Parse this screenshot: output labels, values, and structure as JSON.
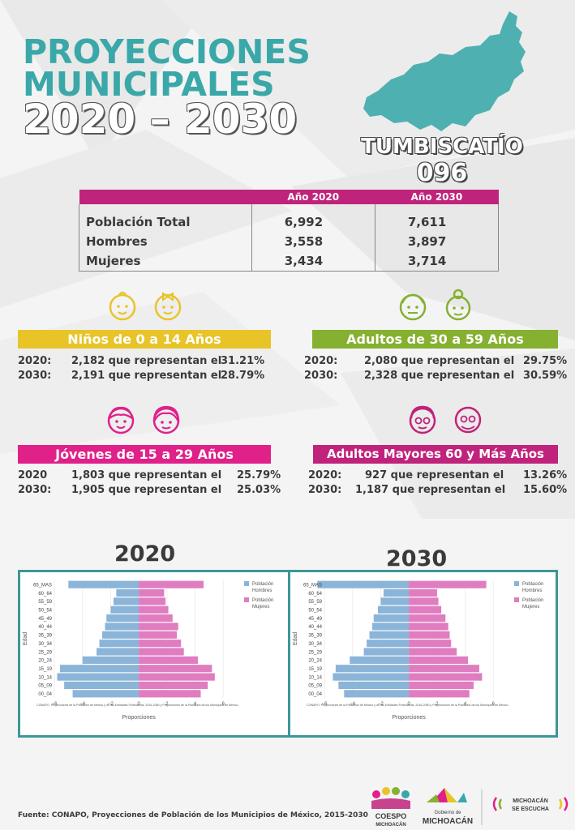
{
  "header": {
    "title_line1": "PROYECCIONES",
    "title_line2": "MUNICIPALES",
    "title_line3": "2020 – 2030",
    "municipality": "TUMBISCATÍO",
    "code": "096"
  },
  "colors": {
    "teal": "#3aa8a8",
    "magenta": "#c0237b",
    "yellow": "#e8c428",
    "green": "#86b030",
    "pink": "#e0218a",
    "chart_border": "#3d9797",
    "hombres": "#8ab4d8",
    "mujeres": "#e07cc0"
  },
  "summary_table": {
    "headers": [
      "",
      "Año 2020",
      "Año 2030"
    ],
    "rows": [
      {
        "label": "Población Total",
        "y2020": "6,992",
        "y2030": "7,611"
      },
      {
        "label": "Hombres",
        "y2020": "3,558",
        "y2030": "3,897"
      },
      {
        "label": "Mujeres",
        "y2020": "3,434",
        "y2030": "3,714"
      }
    ]
  },
  "groups": {
    "ninos": {
      "title": "Niños de 0 a 14 Años",
      "icons": [
        "baby-boy-icon",
        "baby-girl-icon"
      ],
      "rows": [
        {
          "year": "2020:",
          "text": "2,182 que representan el",
          "pct": "31.21%"
        },
        {
          "year": "2030:",
          "text": "2,191 que representan el",
          "pct": "28.79%"
        }
      ]
    },
    "adultos": {
      "title": "Adultos de 30 a 59 Años",
      "icons": [
        "adult-man-icon",
        "adult-woman-icon"
      ],
      "rows": [
        {
          "year": "2020:",
          "text": "2,080 que representan el",
          "pct": "29.75%"
        },
        {
          "year": "2030:",
          "text": "2,328 que representan el",
          "pct": "30.59%"
        }
      ]
    },
    "jovenes": {
      "title": "Jóvenes de 15 a 29 Años",
      "icons": [
        "young-man-icon",
        "young-woman-icon"
      ],
      "rows": [
        {
          "year": "2020",
          "text": "1,803 que representan el",
          "pct": "25.79%"
        },
        {
          "year": "2030:",
          "text": "1,905 que representan el",
          "pct": "25.03%"
        }
      ]
    },
    "mayores": {
      "title": "Adultos Mayores  60 y Más Años",
      "icons": [
        "elderly-woman-icon",
        "elderly-man-icon"
      ],
      "rows": [
        {
          "year": "2020:",
          "text": "927  que representan el",
          "pct": "13.26%"
        },
        {
          "year": "2030:",
          "text": "1,187 que representan el",
          "pct": "15.60%"
        }
      ]
    }
  },
  "pyramids": {
    "title_2020": "2020",
    "title_2030": "2030",
    "ylabel": "Edad",
    "xlabel": "Proporciones",
    "legend_hombres": "Población Hombres",
    "legend_mujeres": "Población Mujeres",
    "note": "CONAPO. Proyecciones de la Población de México y de las Entidades Federativas, 2016-2050 y Proyecciones de la Población de los Municipios de México."
  },
  "chart_data": [
    {
      "type": "bar",
      "title": "2020",
      "xlabel": "Proporciones",
      "ylabel": "Edad",
      "xlim": [
        -6,
        8
      ],
      "xticks": [
        -6,
        -4,
        -2,
        0,
        2,
        4,
        6
      ],
      "categories": [
        "65_MAS",
        "60_64",
        "55_59",
        "50_54",
        "45_49",
        "40_44",
        "35_39",
        "30_34",
        "25_29",
        "20_24",
        "15_19",
        "10_14",
        "05_09",
        "00_04"
      ],
      "series": [
        {
          "name": "Población Hombres",
          "values": [
            -5.0,
            -1.6,
            -1.8,
            -2.0,
            -2.3,
            -2.4,
            -2.6,
            -2.8,
            -3.0,
            -4.0,
            -5.6,
            -5.8,
            -5.3,
            -4.7
          ]
        },
        {
          "name": "Población Mujeres",
          "values": [
            4.6,
            1.8,
            1.9,
            2.1,
            2.4,
            2.8,
            2.7,
            3.0,
            3.2,
            4.2,
            5.2,
            5.4,
            4.9,
            4.4
          ]
        }
      ]
    },
    {
      "type": "bar",
      "title": "2030",
      "xlabel": "Proporciones",
      "ylabel": "Edad",
      "xlim": [
        -6,
        8
      ],
      "xticks": [
        -6,
        -4,
        -2,
        0,
        2,
        4,
        6
      ],
      "categories": [
        "65_MAS",
        "60_64",
        "55_59",
        "50_54",
        "45_49",
        "40_44",
        "35_39",
        "30_34",
        "25_29",
        "20_24",
        "15_19",
        "10_14",
        "05_09",
        "00_04"
      ],
      "series": [
        {
          "name": "Población Hombres",
          "values": [
            -6.5,
            -1.8,
            -2.0,
            -2.2,
            -2.5,
            -2.6,
            -2.8,
            -3.0,
            -3.2,
            -4.2,
            -5.2,
            -5.4,
            -5.0,
            -4.6
          ]
        },
        {
          "name": "Población Mujeres",
          "values": [
            5.5,
            2.0,
            2.1,
            2.3,
            2.6,
            2.8,
            2.9,
            3.0,
            3.4,
            4.2,
            5.0,
            5.2,
            4.6,
            4.3
          ]
        }
      ]
    }
  ],
  "footer": {
    "source": "Fuente: CONAPO, Proyecciones de Población de los Municipios de México, 2015-2030",
    "logo1_text": "COESPO",
    "logo1_sub": "MICHOACÁN",
    "logo2_top": "Gobierno de",
    "logo2_text": "MICHOACÁN",
    "logo3_line1": "MICHOACÁN",
    "logo3_line2": "SE ESCUCHA"
  }
}
